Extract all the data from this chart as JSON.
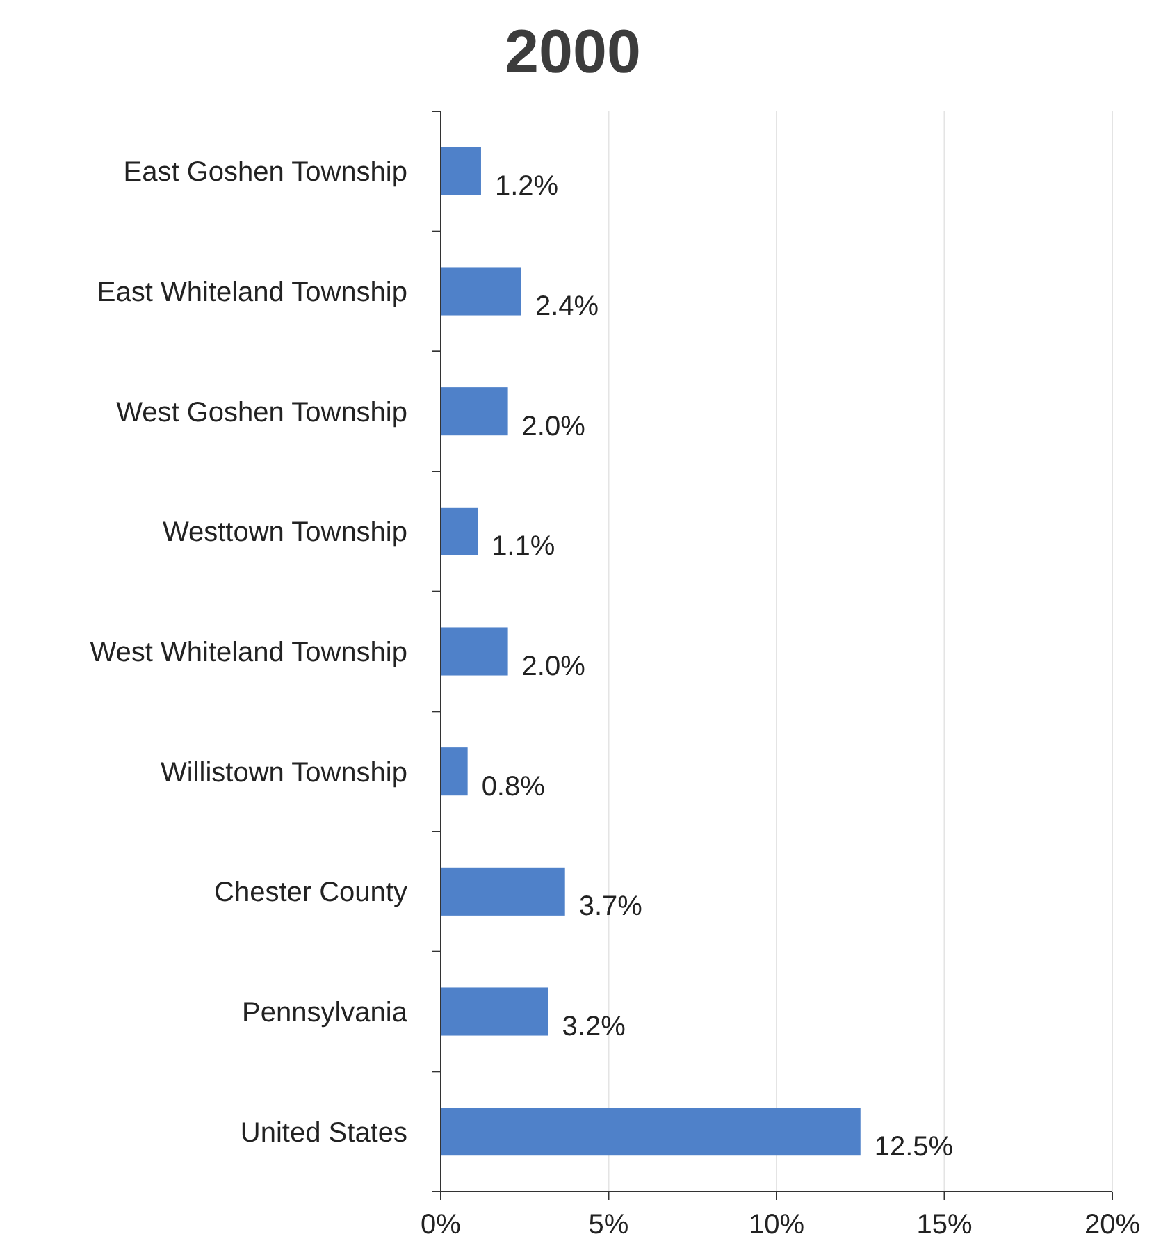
{
  "chart_data": {
    "type": "bar",
    "orientation": "horizontal",
    "title": "2000",
    "categories": [
      "East Goshen Township",
      "East Whiteland Township",
      "West Goshen Township",
      "Westtown Township",
      "West Whiteland Township",
      "Willistown Township",
      "Chester County",
      "Pennsylvania",
      "United States"
    ],
    "values": [
      1.2,
      2.4,
      2.0,
      1.1,
      2.0,
      0.8,
      3.7,
      3.2,
      12.5
    ],
    "value_labels": [
      "1.2%",
      "2.4%",
      "2.0%",
      "1.1%",
      "2.0%",
      "0.8%",
      "3.7%",
      "3.2%",
      "12.5%"
    ],
    "color": "#4f81c9",
    "xlim": [
      0,
      20
    ],
    "xticks": [
      {
        "value": 0,
        "label": "0%"
      },
      {
        "value": 5,
        "label": "5%"
      },
      {
        "value": 10,
        "label": "10%"
      },
      {
        "value": 15,
        "label": "15%"
      },
      {
        "value": 20,
        "label": "20%"
      }
    ],
    "grid": "x"
  }
}
